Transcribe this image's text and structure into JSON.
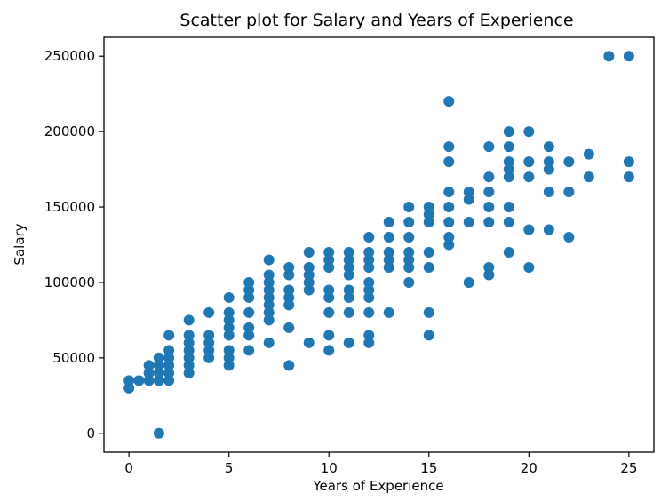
{
  "chart_data": {
    "type": "scatter",
    "title": "Scatter plot for Salary and Years of Experience",
    "xlabel": "Years of Experience",
    "ylabel": "Salary",
    "xlim": [
      -1.25,
      26.25
    ],
    "ylim": [
      -12500,
      262500
    ],
    "xticks": [
      0,
      5,
      10,
      15,
      20,
      25
    ],
    "yticks": [
      0,
      50000,
      100000,
      150000,
      200000,
      250000
    ],
    "grid": false,
    "legend": "none",
    "color": "#1f77b4",
    "points": [
      [
        0,
        30000
      ],
      [
        0,
        35000
      ],
      [
        0.5,
        35000
      ],
      [
        1,
        35000
      ],
      [
        1,
        40000
      ],
      [
        1,
        45000
      ],
      [
        1.5,
        0
      ],
      [
        1.5,
        35000
      ],
      [
        1.5,
        40000
      ],
      [
        1.5,
        45000
      ],
      [
        1.5,
        50000
      ],
      [
        2,
        35000
      ],
      [
        2,
        40000
      ],
      [
        2,
        45000
      ],
      [
        2,
        50000
      ],
      [
        2,
        55000
      ],
      [
        2,
        65000
      ],
      [
        3,
        40000
      ],
      [
        3,
        45000
      ],
      [
        3,
        50000
      ],
      [
        3,
        55000
      ],
      [
        3,
        60000
      ],
      [
        3,
        65000
      ],
      [
        3,
        75000
      ],
      [
        4,
        50000
      ],
      [
        4,
        55000
      ],
      [
        4,
        60000
      ],
      [
        4,
        65000
      ],
      [
        4,
        80000
      ],
      [
        5,
        45000
      ],
      [
        5,
        50000
      ],
      [
        5,
        55000
      ],
      [
        5,
        65000
      ],
      [
        5,
        70000
      ],
      [
        5,
        75000
      ],
      [
        5,
        80000
      ],
      [
        5,
        90000
      ],
      [
        6,
        55000
      ],
      [
        6,
        65000
      ],
      [
        6,
        70000
      ],
      [
        6,
        80000
      ],
      [
        6,
        90000
      ],
      [
        6,
        95000
      ],
      [
        6,
        100000
      ],
      [
        7,
        60000
      ],
      [
        7,
        75000
      ],
      [
        7,
        80000
      ],
      [
        7,
        85000
      ],
      [
        7,
        90000
      ],
      [
        7,
        95000
      ],
      [
        7,
        100000
      ],
      [
        7,
        105000
      ],
      [
        7,
        115000
      ],
      [
        8,
        45000
      ],
      [
        8,
        70000
      ],
      [
        8,
        85000
      ],
      [
        8,
        90000
      ],
      [
        8,
        95000
      ],
      [
        8,
        105000
      ],
      [
        8,
        110000
      ],
      [
        9,
        60000
      ],
      [
        9,
        95000
      ],
      [
        9,
        100000
      ],
      [
        9,
        105000
      ],
      [
        9,
        110000
      ],
      [
        9,
        120000
      ],
      [
        10,
        55000
      ],
      [
        10,
        65000
      ],
      [
        10,
        80000
      ],
      [
        10,
        90000
      ],
      [
        10,
        95000
      ],
      [
        10,
        110000
      ],
      [
        10,
        115000
      ],
      [
        10,
        120000
      ],
      [
        11,
        60000
      ],
      [
        11,
        80000
      ],
      [
        11,
        90000
      ],
      [
        11,
        95000
      ],
      [
        11,
        105000
      ],
      [
        11,
        110000
      ],
      [
        11,
        115000
      ],
      [
        11,
        120000
      ],
      [
        12,
        60000
      ],
      [
        12,
        65000
      ],
      [
        12,
        80000
      ],
      [
        12,
        90000
      ],
      [
        12,
        95000
      ],
      [
        12,
        100000
      ],
      [
        12,
        110000
      ],
      [
        12,
        115000
      ],
      [
        12,
        120000
      ],
      [
        12,
        130000
      ],
      [
        13,
        80000
      ],
      [
        13,
        110000
      ],
      [
        13,
        115000
      ],
      [
        13,
        120000
      ],
      [
        13,
        130000
      ],
      [
        13,
        140000
      ],
      [
        14,
        100000
      ],
      [
        14,
        110000
      ],
      [
        14,
        115000
      ],
      [
        14,
        120000
      ],
      [
        14,
        130000
      ],
      [
        14,
        140000
      ],
      [
        14,
        150000
      ],
      [
        15,
        65000
      ],
      [
        15,
        80000
      ],
      [
        15,
        110000
      ],
      [
        15,
        120000
      ],
      [
        15,
        140000
      ],
      [
        15,
        145000
      ],
      [
        15,
        150000
      ],
      [
        16,
        125000
      ],
      [
        16,
        130000
      ],
      [
        16,
        140000
      ],
      [
        16,
        150000
      ],
      [
        16,
        160000
      ],
      [
        16,
        180000
      ],
      [
        16,
        190000
      ],
      [
        16,
        220000
      ],
      [
        17,
        100000
      ],
      [
        17,
        140000
      ],
      [
        17,
        155000
      ],
      [
        17,
        160000
      ],
      [
        18,
        105000
      ],
      [
        18,
        110000
      ],
      [
        18,
        140000
      ],
      [
        18,
        150000
      ],
      [
        18,
        160000
      ],
      [
        18,
        170000
      ],
      [
        18,
        190000
      ],
      [
        19,
        120000
      ],
      [
        19,
        140000
      ],
      [
        19,
        150000
      ],
      [
        19,
        170000
      ],
      [
        19,
        175000
      ],
      [
        19,
        180000
      ],
      [
        19,
        190000
      ],
      [
        19,
        200000
      ],
      [
        20,
        110000
      ],
      [
        20,
        135000
      ],
      [
        20,
        170000
      ],
      [
        20,
        180000
      ],
      [
        20,
        200000
      ],
      [
        21,
        135000
      ],
      [
        21,
        160000
      ],
      [
        21,
        175000
      ],
      [
        21,
        180000
      ],
      [
        21,
        190000
      ],
      [
        22,
        130000
      ],
      [
        22,
        160000
      ],
      [
        22,
        180000
      ],
      [
        23,
        170000
      ],
      [
        23,
        185000
      ],
      [
        24,
        250000
      ],
      [
        25,
        170000
      ],
      [
        25,
        180000
      ],
      [
        25,
        250000
      ]
    ]
  }
}
